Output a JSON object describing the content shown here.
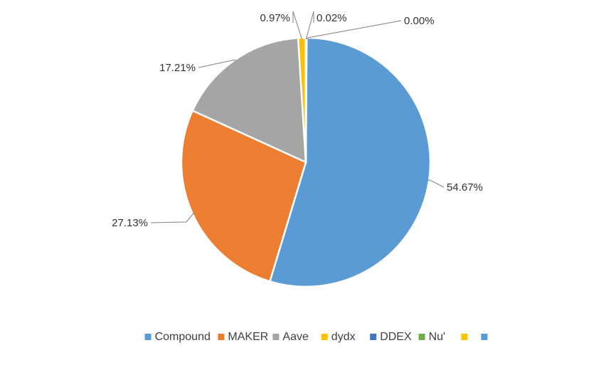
{
  "chart_data": {
    "type": "pie",
    "title": "",
    "slices": [
      {
        "label": "Compound",
        "value": 54.67,
        "display": "54.67%",
        "color": "#5b9bd5"
      },
      {
        "label": "MAKER",
        "value": 27.13,
        "display": "27.13%",
        "color": "#ed7d31"
      },
      {
        "label": "Aave",
        "value": 17.21,
        "display": "17.21%",
        "color": "#a5a5a5"
      },
      {
        "label": "dydx",
        "value": 0.97,
        "display": "0.97%",
        "color": "#ffc000"
      },
      {
        "label": "DDEX",
        "value": 0.02,
        "display": "0.02%",
        "color": "#4472c4"
      },
      {
        "label": "Nu'",
        "value": 0.0,
        "display": "0.00%",
        "color": "#70ad47"
      }
    ],
    "legend": {
      "placement": "bottom",
      "items": [
        {
          "label": "Compound",
          "color": "#5b9bd5"
        },
        {
          "label": "MAKER",
          "color": "#ed7d31"
        },
        {
          "label": "Aave",
          "color": "#a5a5a5"
        },
        {
          "label": "dydx",
          "color": "#ffc000"
        },
        {
          "label": "DDEX",
          "color": "#4472c4"
        },
        {
          "label": "Nu'",
          "color": "#70ad47"
        },
        {
          "label": "",
          "color": "#ffc000"
        },
        {
          "label": "",
          "color": "#5b9bd5"
        }
      ]
    }
  }
}
